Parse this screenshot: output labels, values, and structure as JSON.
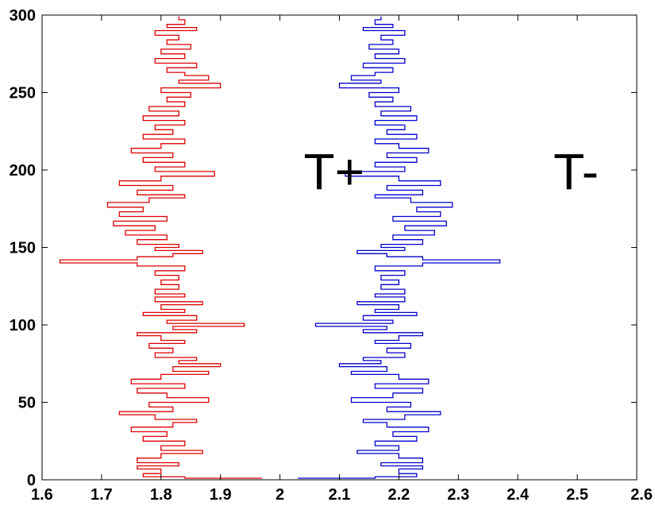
{
  "chart_data": {
    "type": "line",
    "title": "",
    "xlabel": "",
    "ylabel": "",
    "xlim": [
      1.6,
      2.6
    ],
    "ylim": [
      0,
      300
    ],
    "grid": false,
    "x_ticks": [
      1.6,
      1.7,
      1.8,
      1.9,
      2.0,
      2.1,
      2.2,
      2.3,
      2.4,
      2.5,
      2.6
    ],
    "x_tick_labels": [
      "1.6",
      "1.7",
      "1.8",
      "1.9",
      "2",
      "2.1",
      "2.2",
      "2.3",
      "2.4",
      "2.5",
      "2.6"
    ],
    "y_ticks": [
      0,
      50,
      100,
      150,
      200,
      250,
      300
    ],
    "y_tick_labels": [
      "0",
      "50",
      "100",
      "150",
      "200",
      "250",
      "300"
    ],
    "series": [
      {
        "name": "T+",
        "color": "#dd0000",
        "points": [
          [
            1.97,
            1
          ],
          [
            1.84,
            2
          ],
          [
            1.77,
            4
          ],
          [
            1.8,
            7
          ],
          [
            1.76,
            9
          ],
          [
            1.83,
            11
          ],
          [
            1.76,
            14
          ],
          [
            1.8,
            17
          ],
          [
            1.87,
            19
          ],
          [
            1.8,
            22
          ],
          [
            1.84,
            25
          ],
          [
            1.77,
            28
          ],
          [
            1.81,
            31
          ],
          [
            1.75,
            34
          ],
          [
            1.82,
            37
          ],
          [
            1.86,
            39
          ],
          [
            1.79,
            42
          ],
          [
            1.73,
            44
          ],
          [
            1.82,
            47
          ],
          [
            1.78,
            50
          ],
          [
            1.88,
            53
          ],
          [
            1.81,
            56
          ],
          [
            1.76,
            59
          ],
          [
            1.84,
            62
          ],
          [
            1.75,
            65
          ],
          [
            1.8,
            68
          ],
          [
            1.88,
            70
          ],
          [
            1.82,
            73
          ],
          [
            1.9,
            75
          ],
          [
            1.83,
            77
          ],
          [
            1.86,
            79
          ],
          [
            1.79,
            82
          ],
          [
            1.82,
            85
          ],
          [
            1.78,
            88
          ],
          [
            1.84,
            90
          ],
          [
            1.8,
            93
          ],
          [
            1.76,
            95
          ],
          [
            1.86,
            97
          ],
          [
            1.82,
            99
          ],
          [
            1.94,
            101
          ],
          [
            1.81,
            103
          ],
          [
            1.86,
            106
          ],
          [
            1.77,
            108
          ],
          [
            1.84,
            110
          ],
          [
            1.8,
            113
          ],
          [
            1.87,
            115
          ],
          [
            1.79,
            118
          ],
          [
            1.84,
            120
          ],
          [
            1.79,
            123
          ],
          [
            1.83,
            126
          ],
          [
            1.8,
            129
          ],
          [
            1.83,
            132
          ],
          [
            1.79,
            135
          ],
          [
            1.84,
            138
          ],
          [
            1.76,
            140
          ],
          [
            1.63,
            142
          ],
          [
            1.76,
            144
          ],
          [
            1.82,
            146
          ],
          [
            1.87,
            148
          ],
          [
            1.79,
            150
          ],
          [
            1.83,
            152
          ],
          [
            1.76,
            155
          ],
          [
            1.81,
            158
          ],
          [
            1.74,
            161
          ],
          [
            1.79,
            164
          ],
          [
            1.72,
            167
          ],
          [
            1.81,
            170
          ],
          [
            1.73,
            173
          ],
          [
            1.77,
            176
          ],
          [
            1.71,
            179
          ],
          [
            1.78,
            182
          ],
          [
            1.84,
            184
          ],
          [
            1.76,
            187
          ],
          [
            1.82,
            190
          ],
          [
            1.73,
            193
          ],
          [
            1.8,
            196
          ],
          [
            1.89,
            199
          ],
          [
            1.79,
            202
          ],
          [
            1.84,
            205
          ],
          [
            1.77,
            208
          ],
          [
            1.82,
            211
          ],
          [
            1.75,
            214
          ],
          [
            1.8,
            217
          ],
          [
            1.84,
            220
          ],
          [
            1.77,
            223
          ],
          [
            1.82,
            226
          ],
          [
            1.79,
            229
          ],
          [
            1.84,
            232
          ],
          [
            1.77,
            235
          ],
          [
            1.83,
            238
          ],
          [
            1.78,
            241
          ],
          [
            1.84,
            244
          ],
          [
            1.81,
            247
          ],
          [
            1.85,
            250
          ],
          [
            1.8,
            253
          ],
          [
            1.9,
            256
          ],
          [
            1.83,
            258
          ],
          [
            1.88,
            261
          ],
          [
            1.84,
            263
          ],
          [
            1.81,
            266
          ],
          [
            1.86,
            269
          ],
          [
            1.79,
            272
          ],
          [
            1.84,
            275
          ],
          [
            1.8,
            278
          ],
          [
            1.85,
            281
          ],
          [
            1.81,
            284
          ],
          [
            1.83,
            287
          ],
          [
            1.79,
            290
          ],
          [
            1.86,
            292
          ],
          [
            1.81,
            294
          ],
          [
            1.84,
            297
          ],
          [
            1.83,
            299
          ]
        ]
      },
      {
        "name": "T-",
        "color": "#0000cc",
        "points": [
          [
            2.03,
            1
          ],
          [
            2.16,
            2
          ],
          [
            2.23,
            4
          ],
          [
            2.2,
            7
          ],
          [
            2.24,
            9
          ],
          [
            2.17,
            11
          ],
          [
            2.24,
            14
          ],
          [
            2.2,
            17
          ],
          [
            2.13,
            19
          ],
          [
            2.2,
            22
          ],
          [
            2.16,
            25
          ],
          [
            2.23,
            28
          ],
          [
            2.19,
            31
          ],
          [
            2.25,
            34
          ],
          [
            2.18,
            37
          ],
          [
            2.14,
            39
          ],
          [
            2.21,
            42
          ],
          [
            2.27,
            44
          ],
          [
            2.18,
            47
          ],
          [
            2.22,
            50
          ],
          [
            2.12,
            53
          ],
          [
            2.19,
            56
          ],
          [
            2.24,
            59
          ],
          [
            2.16,
            62
          ],
          [
            2.25,
            65
          ],
          [
            2.2,
            68
          ],
          [
            2.12,
            70
          ],
          [
            2.18,
            73
          ],
          [
            2.1,
            75
          ],
          [
            2.17,
            77
          ],
          [
            2.14,
            79
          ],
          [
            2.21,
            82
          ],
          [
            2.18,
            85
          ],
          [
            2.22,
            88
          ],
          [
            2.16,
            90
          ],
          [
            2.2,
            93
          ],
          [
            2.24,
            95
          ],
          [
            2.14,
            97
          ],
          [
            2.18,
            99
          ],
          [
            2.06,
            101
          ],
          [
            2.19,
            103
          ],
          [
            2.14,
            106
          ],
          [
            2.23,
            108
          ],
          [
            2.16,
            110
          ],
          [
            2.2,
            113
          ],
          [
            2.13,
            115
          ],
          [
            2.21,
            118
          ],
          [
            2.16,
            120
          ],
          [
            2.21,
            123
          ],
          [
            2.17,
            126
          ],
          [
            2.2,
            129
          ],
          [
            2.17,
            132
          ],
          [
            2.21,
            135
          ],
          [
            2.16,
            138
          ],
          [
            2.24,
            140
          ],
          [
            2.37,
            142
          ],
          [
            2.24,
            144
          ],
          [
            2.18,
            146
          ],
          [
            2.13,
            148
          ],
          [
            2.21,
            150
          ],
          [
            2.17,
            152
          ],
          [
            2.24,
            155
          ],
          [
            2.19,
            158
          ],
          [
            2.26,
            161
          ],
          [
            2.21,
            164
          ],
          [
            2.28,
            167
          ],
          [
            2.19,
            170
          ],
          [
            2.27,
            173
          ],
          [
            2.23,
            176
          ],
          [
            2.29,
            179
          ],
          [
            2.22,
            182
          ],
          [
            2.16,
            184
          ],
          [
            2.24,
            187
          ],
          [
            2.18,
            190
          ],
          [
            2.27,
            193
          ],
          [
            2.2,
            196
          ],
          [
            2.11,
            199
          ],
          [
            2.21,
            202
          ],
          [
            2.16,
            205
          ],
          [
            2.23,
            208
          ],
          [
            2.18,
            211
          ],
          [
            2.25,
            214
          ],
          [
            2.2,
            217
          ],
          [
            2.16,
            220
          ],
          [
            2.23,
            223
          ],
          [
            2.18,
            226
          ],
          [
            2.21,
            229
          ],
          [
            2.16,
            232
          ],
          [
            2.23,
            235
          ],
          [
            2.17,
            238
          ],
          [
            2.22,
            241
          ],
          [
            2.16,
            244
          ],
          [
            2.19,
            247
          ],
          [
            2.15,
            250
          ],
          [
            2.2,
            253
          ],
          [
            2.1,
            256
          ],
          [
            2.17,
            258
          ],
          [
            2.12,
            261
          ],
          [
            2.16,
            263
          ],
          [
            2.19,
            266
          ],
          [
            2.14,
            269
          ],
          [
            2.21,
            272
          ],
          [
            2.16,
            275
          ],
          [
            2.2,
            278
          ],
          [
            2.15,
            281
          ],
          [
            2.19,
            284
          ],
          [
            2.17,
            287
          ],
          [
            2.21,
            290
          ],
          [
            2.14,
            292
          ],
          [
            2.19,
            294
          ],
          [
            2.16,
            297
          ],
          [
            2.17,
            299
          ]
        ]
      }
    ],
    "annotations": [
      {
        "text": "T+",
        "x": 2.04,
        "y": 198
      },
      {
        "text": "T-",
        "x": 2.46,
        "y": 198
      }
    ]
  }
}
